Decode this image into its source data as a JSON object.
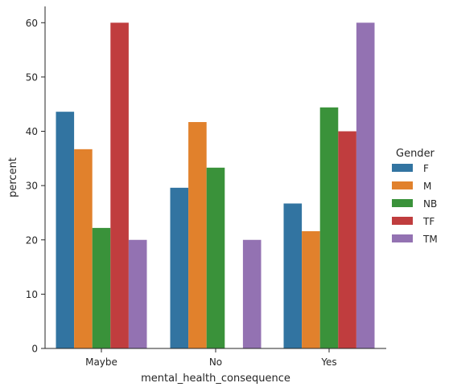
{
  "chart_data": {
    "type": "bar",
    "categories": [
      "Maybe",
      "No",
      "Yes"
    ],
    "series": [
      {
        "name": "F",
        "values": [
          43.6,
          29.6,
          26.7
        ]
      },
      {
        "name": "M",
        "values": [
          36.7,
          41.7,
          21.6
        ]
      },
      {
        "name": "NB",
        "values": [
          22.2,
          33.3,
          44.4
        ]
      },
      {
        "name": "TF",
        "values": [
          60.0,
          0.0,
          40.0
        ]
      },
      {
        "name": "TM",
        "values": [
          20.0,
          20.0,
          60.0
        ]
      }
    ],
    "colors": {
      "F": "#3274a1",
      "M": "#e1812c",
      "NB": "#3a923a",
      "TF": "#c03d3e",
      "TM": "#9372b2"
    },
    "xlabel": "mental_health_consequence",
    "ylabel": "percent",
    "ylim": [
      0,
      63
    ],
    "yticks": [
      0,
      10,
      20,
      30,
      40,
      50,
      60
    ],
    "legend_title": "Gender",
    "legend_position": "right",
    "grid": false
  }
}
